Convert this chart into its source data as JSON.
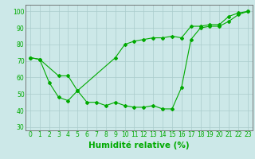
{
  "line1_x": [
    0,
    1,
    2,
    3,
    4,
    5,
    6,
    7,
    8,
    9,
    10,
    11,
    12,
    13,
    14,
    15,
    16,
    17,
    18,
    19,
    20,
    21,
    22,
    23
  ],
  "line1_y": [
    72,
    71,
    57,
    48,
    46,
    52,
    45,
    45,
    43,
    45,
    43,
    42,
    42,
    43,
    41,
    41,
    54,
    83,
    90,
    91,
    91,
    94,
    98,
    100
  ],
  "line2_x": [
    0,
    1,
    3,
    4,
    5,
    9,
    10,
    11,
    12,
    13,
    14,
    15,
    16,
    17,
    18,
    19,
    20,
    21,
    22,
    23
  ],
  "line2_y": [
    72,
    71,
    61,
    61,
    52,
    72,
    80,
    82,
    83,
    84,
    84,
    85,
    84,
    91,
    91,
    92,
    92,
    97,
    99,
    100
  ],
  "line_color": "#00aa00",
  "bg_color": "#cce8e8",
  "grid_color": "#aacccc",
  "xlabel": "Humidité relative (%)",
  "ylim": [
    28,
    104
  ],
  "yticks": [
    30,
    40,
    50,
    60,
    70,
    80,
    90,
    100
  ],
  "xticks": [
    0,
    1,
    2,
    3,
    4,
    5,
    6,
    7,
    8,
    9,
    10,
    11,
    12,
    13,
    14,
    15,
    16,
    17,
    18,
    19,
    20,
    21,
    22,
    23
  ],
  "marker": "D",
  "markersize": 2.0,
  "linewidth": 0.8,
  "xlabel_fontsize": 7.5,
  "tick_fontsize": 5.5
}
